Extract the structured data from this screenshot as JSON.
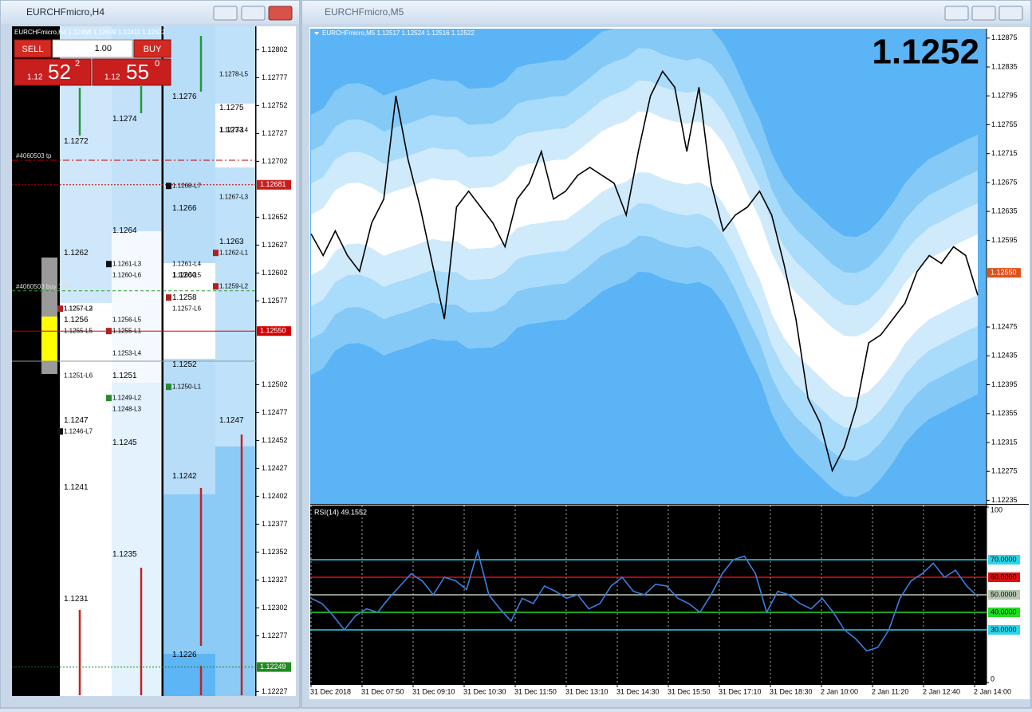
{
  "left_window": {
    "title": "EURCHFmicro,H4",
    "header": "EURCHFmicro,H4  1.12468 1.12609 1.12411 1.12522",
    "trade_panel": {
      "sell": "SELL",
      "buy": "BUY",
      "volume": "1.00",
      "sell_prefix": "1.12",
      "sell_big": "52",
      "sell_sup": "2",
      "buy_prefix": "1.12",
      "buy_big": "55",
      "buy_sup": "0"
    },
    "price_axis": {
      "ylim": [
        1.12223,
        1.12823
      ],
      "ticks": [
        1.12802,
        1.12777,
        1.12752,
        1.12727,
        1.12702,
        1.12652,
        1.12627,
        1.12602,
        1.12577,
        1.12502,
        1.12477,
        1.12452,
        1.12427,
        1.12402,
        1.12377,
        1.12352,
        1.12327,
        1.12302,
        1.12277,
        1.12227
      ],
      "markers": [
        {
          "label": "1.12681",
          "color": "#c81e1e"
        },
        {
          "label": "1.12550",
          "color": "#d40000"
        },
        {
          "label": "1.12249",
          "color": "#1e8c1e"
        }
      ]
    },
    "lines": [
      {
        "price": 1.12703,
        "label": "#4060503 tp",
        "color": "#c00000",
        "dash": "8 3 2 3"
      },
      {
        "price": 1.12681,
        "color": "#c00000",
        "dash": "2 2"
      },
      {
        "price": 1.12586,
        "label": "#4060503 buy 1.00",
        "color": "#2a9d2a",
        "dash": "4 3"
      },
      {
        "price": 1.1255,
        "color": "#d00000",
        "dash": "none"
      },
      {
        "price": 1.12523,
        "color": "#8899aa",
        "dash": "none"
      },
      {
        "price": 1.12249,
        "color": "#1a7f1a",
        "dash": "2 2"
      }
    ],
    "columns": [
      {
        "levels": [
          {
            "label": "1.1272"
          },
          {
            "label": "1.1262"
          },
          {
            "label": "1.1257-L2",
            "mark": "#b02020"
          },
          {
            "label": "1.1257-L3"
          },
          {
            "label": "1.1256"
          },
          {
            "label": "1.1255-L5"
          },
          {
            "label": "1.1251-L6"
          },
          {
            "label": "1.1247"
          },
          {
            "label": "1.1246-L7",
            "mark": "#111111"
          },
          {
            "label": "1.1241"
          },
          {
            "label": "1.1231"
          }
        ]
      },
      {
        "levels": [
          {
            "label": "1.1274"
          },
          {
            "label": "1.1264"
          },
          {
            "label": "1.1261-L3",
            "mark": "#111111"
          },
          {
            "label": "1.1260-L6"
          },
          {
            "label": "1.1256-L5"
          },
          {
            "label": "1.1255-L1",
            "mark": "#b02020"
          },
          {
            "label": "1.1253-L4"
          },
          {
            "label": "1.1251"
          },
          {
            "label": "1.1249-L2",
            "mark": "#2a8a2a"
          },
          {
            "label": "1.1248-L3"
          },
          {
            "label": "1.1245"
          },
          {
            "label": "1.1235"
          }
        ]
      },
      {
        "levels": [
          {
            "label": "1.1276"
          },
          {
            "label": "1.1268-L7",
            "mark": "#111111"
          },
          {
            "label": "1.1266"
          },
          {
            "label": "1.1261-L4"
          },
          {
            "label": "1.1260-L5"
          },
          {
            "label": "1.1260"
          },
          {
            "label": "1.1258",
            "mark": "#b02020"
          },
          {
            "label": "1.1257-L6"
          },
          {
            "label": "1.1252"
          },
          {
            "label": "1.1250-L1",
            "mark": "#2a8a2a"
          },
          {
            "label": "1.1242"
          },
          {
            "label": "1.1226"
          }
        ]
      },
      {
        "levels": [
          {
            "label": "1.1278-L5"
          },
          {
            "label": "1.1275"
          },
          {
            "label": "1.1273-L4"
          },
          {
            "label": "1.1273"
          },
          {
            "label": "1.1267-L3"
          },
          {
            "label": "1.1263"
          },
          {
            "label": "1.1262-L1",
            "mark": "#b02020"
          },
          {
            "label": "1.1259-L2",
            "mark": "#b02020"
          },
          {
            "label": "1.1247"
          }
        ]
      }
    ]
  },
  "right_window": {
    "title": "EURCHFmicro,M5",
    "header": "EURCHFmicro,M5  1.12517 1.12524 1.12516 1.12522",
    "big_price": "1.1252",
    "price_axis": {
      "ylim": [
        1.1223,
        1.12888
      ],
      "ticks": [
        1.12875,
        1.12835,
        1.12795,
        1.12755,
        1.12715,
        1.12675,
        1.12635,
        1.12595,
        1.12475,
        1.12435,
        1.12395,
        1.12355,
        1.12315,
        1.12275,
        1.12235
      ],
      "markers": [
        {
          "label": "1.12550",
          "color": "#e0501a"
        }
      ]
    },
    "close_series": {
      "color": "#000000",
      "values": [
        1.12604,
        1.12574,
        1.12608,
        1.12574,
        1.12552,
        1.12619,
        1.12652,
        1.12795,
        1.12707,
        1.12641,
        1.12563,
        1.12486,
        1.12641,
        1.12663,
        1.12641,
        1.12619,
        1.12586,
        1.12652,
        1.12674,
        1.12718,
        1.12652,
        1.12663,
        1.12685,
        1.12696,
        1.12685,
        1.12674,
        1.1263,
        1.12718,
        1.12795,
        1.12829,
        1.12807,
        1.12718,
        1.12807,
        1.12674,
        1.12608,
        1.1263,
        1.12641,
        1.12663,
        1.1263,
        1.12563,
        1.12486,
        1.12376,
        1.12342,
        1.12276,
        1.12309,
        1.12365,
        1.12453,
        1.12464,
        1.12486,
        1.12508,
        1.12552,
        1.12574,
        1.12563,
        1.12586,
        1.12574,
        1.12519
      ]
    },
    "rsi": {
      "label": "RSI(14) 49.1552",
      "ylim": [
        0,
        100
      ],
      "yticks": [
        0,
        100
      ],
      "color": "#3a7fe0",
      "levels": [
        {
          "value": 70,
          "label": "70.0000",
          "color": "#2dd5e8"
        },
        {
          "value": 60,
          "label": "60.0000",
          "color": "#e01010"
        },
        {
          "value": 50,
          "label": "50.0000",
          "color": "#b7c7b0"
        },
        {
          "value": 40,
          "label": "40.0000",
          "color": "#22dd22"
        },
        {
          "value": 30,
          "label": "30.0000",
          "color": "#2dd5e8"
        }
      ],
      "values": [
        48,
        45,
        38,
        30,
        38,
        42,
        40,
        48,
        55,
        62,
        58,
        50,
        60,
        58,
        53,
        75,
        50,
        42,
        35,
        48,
        45,
        55,
        52,
        48,
        50,
        42,
        45,
        55,
        60,
        52,
        50,
        56,
        55,
        48,
        45,
        40,
        50,
        62,
        70,
        72,
        62,
        40,
        52,
        50,
        45,
        42,
        48,
        40,
        30,
        25,
        18,
        20,
        30,
        48,
        58,
        62,
        68,
        60,
        64,
        55,
        49
      ]
    },
    "time_axis": [
      "31 Dec 2018",
      "31 Dec 07:50",
      "31 Dec 09:10",
      "31 Dec 10:30",
      "31 Dec 11:50",
      "31 Dec 13:10",
      "31 Dec 14:30",
      "31 Dec 15:50",
      "31 Dec 17:10",
      "31 Dec 18:30",
      "2 Jan 10:00",
      "2 Jan 11:20",
      "2 Jan 12:40",
      "2 Jan 14:00"
    ]
  }
}
